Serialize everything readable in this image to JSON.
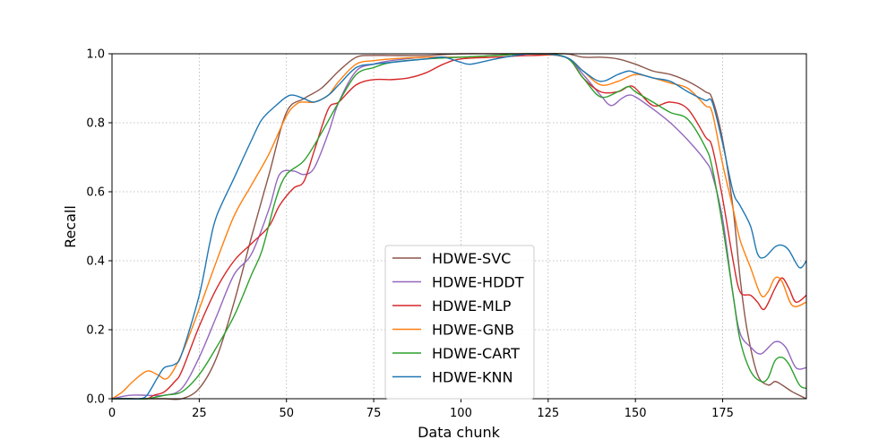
{
  "chart_data": {
    "type": "line",
    "title": "",
    "xlabel": "Data chunk",
    "ylabel": "Recall",
    "xlim": [
      0,
      199
    ],
    "ylim": [
      0,
      1
    ],
    "x_ticks": [
      "0",
      "25",
      "50",
      "75",
      "100",
      "125",
      "150",
      "175"
    ],
    "y_ticks": [
      "0.0",
      "0.2",
      "0.4",
      "0.6",
      "0.8",
      "1.0"
    ],
    "grid": true,
    "legend_position": "lower-center",
    "series": [
      {
        "name": "HDWE-SVC",
        "color": "#8c564b",
        "points": [
          [
            0,
            0
          ],
          [
            5,
            0
          ],
          [
            10,
            0
          ],
          [
            15,
            0
          ],
          [
            20,
            0
          ],
          [
            25,
            0.03
          ],
          [
            30,
            0.12
          ],
          [
            35,
            0.28
          ],
          [
            40,
            0.47
          ],
          [
            45,
            0.65
          ],
          [
            50,
            0.83
          ],
          [
            55,
            0.87
          ],
          [
            60,
            0.9
          ],
          [
            65,
            0.95
          ],
          [
            70,
            0.99
          ],
          [
            75,
            0.995
          ],
          [
            80,
            0.995
          ],
          [
            90,
            0.995
          ],
          [
            100,
            1.0
          ],
          [
            110,
            1.0
          ],
          [
            120,
            1.0
          ],
          [
            130,
            1.0
          ],
          [
            135,
            0.99
          ],
          [
            140,
            0.99
          ],
          [
            145,
            0.985
          ],
          [
            150,
            0.97
          ],
          [
            155,
            0.95
          ],
          [
            160,
            0.94
          ],
          [
            165,
            0.92
          ],
          [
            170,
            0.89
          ],
          [
            172,
            0.87
          ],
          [
            175,
            0.75
          ],
          [
            178,
            0.55
          ],
          [
            180,
            0.35
          ],
          [
            182,
            0.2
          ],
          [
            185,
            0.07
          ],
          [
            188,
            0.04
          ],
          [
            190,
            0.05
          ],
          [
            192,
            0.04
          ],
          [
            195,
            0.02
          ],
          [
            199,
            0.0
          ]
        ]
      },
      {
        "name": "HDWE-HDDT",
        "color": "#9467bd",
        "points": [
          [
            0,
            0
          ],
          [
            5,
            0.01
          ],
          [
            10,
            0.01
          ],
          [
            15,
            0.01
          ],
          [
            20,
            0.03
          ],
          [
            25,
            0.12
          ],
          [
            30,
            0.24
          ],
          [
            35,
            0.36
          ],
          [
            40,
            0.42
          ],
          [
            45,
            0.55
          ],
          [
            48,
            0.65
          ],
          [
            52,
            0.66
          ],
          [
            55,
            0.65
          ],
          [
            58,
            0.67
          ],
          [
            62,
            0.77
          ],
          [
            65,
            0.86
          ],
          [
            70,
            0.95
          ],
          [
            75,
            0.97
          ],
          [
            80,
            0.98
          ],
          [
            90,
            0.99
          ],
          [
            100,
            0.99
          ],
          [
            110,
            0.995
          ],
          [
            120,
            1.0
          ],
          [
            130,
            0.99
          ],
          [
            135,
            0.94
          ],
          [
            140,
            0.88
          ],
          [
            143,
            0.85
          ],
          [
            146,
            0.87
          ],
          [
            148,
            0.88
          ],
          [
            150,
            0.875
          ],
          [
            155,
            0.84
          ],
          [
            160,
            0.8
          ],
          [
            165,
            0.75
          ],
          [
            170,
            0.69
          ],
          [
            172,
            0.65
          ],
          [
            175,
            0.52
          ],
          [
            178,
            0.3
          ],
          [
            180,
            0.19
          ],
          [
            183,
            0.15
          ],
          [
            186,
            0.13
          ],
          [
            190,
            0.165
          ],
          [
            193,
            0.15
          ],
          [
            196,
            0.09
          ],
          [
            199,
            0.09
          ]
        ]
      },
      {
        "name": "HDWE-MLP",
        "color": "#d62728",
        "points": [
          [
            0,
            0
          ],
          [
            5,
            0
          ],
          [
            10,
            0
          ],
          [
            12,
            0.01
          ],
          [
            15,
            0.02
          ],
          [
            18,
            0.05
          ],
          [
            20,
            0.08
          ],
          [
            25,
            0.21
          ],
          [
            30,
            0.32
          ],
          [
            35,
            0.4
          ],
          [
            40,
            0.45
          ],
          [
            45,
            0.5
          ],
          [
            48,
            0.56
          ],
          [
            52,
            0.61
          ],
          [
            55,
            0.63
          ],
          [
            58,
            0.72
          ],
          [
            62,
            0.84
          ],
          [
            65,
            0.86
          ],
          [
            70,
            0.91
          ],
          [
            75,
            0.925
          ],
          [
            80,
            0.925
          ],
          [
            85,
            0.93
          ],
          [
            90,
            0.945
          ],
          [
            95,
            0.97
          ],
          [
            100,
            0.985
          ],
          [
            110,
            0.99
          ],
          [
            120,
            0.995
          ],
          [
            130,
            0.99
          ],
          [
            135,
            0.93
          ],
          [
            140,
            0.89
          ],
          [
            145,
            0.89
          ],
          [
            148,
            0.905
          ],
          [
            150,
            0.9
          ],
          [
            155,
            0.85
          ],
          [
            160,
            0.86
          ],
          [
            165,
            0.84
          ],
          [
            170,
            0.76
          ],
          [
            172,
            0.73
          ],
          [
            175,
            0.58
          ],
          [
            178,
            0.4
          ],
          [
            180,
            0.31
          ],
          [
            183,
            0.3
          ],
          [
            185,
            0.28
          ],
          [
            187,
            0.26
          ],
          [
            190,
            0.32
          ],
          [
            192,
            0.35
          ],
          [
            194,
            0.32
          ],
          [
            196,
            0.28
          ],
          [
            199,
            0.3
          ]
        ]
      },
      {
        "name": "HDWE-GNB",
        "color": "#ff7f0e",
        "points": [
          [
            0,
            0
          ],
          [
            3,
            0.02
          ],
          [
            6,
            0.05
          ],
          [
            10,
            0.08
          ],
          [
            13,
            0.07
          ],
          [
            16,
            0.06
          ],
          [
            20,
            0.13
          ],
          [
            25,
            0.26
          ],
          [
            30,
            0.4
          ],
          [
            35,
            0.53
          ],
          [
            40,
            0.62
          ],
          [
            45,
            0.71
          ],
          [
            50,
            0.82
          ],
          [
            53,
            0.855
          ],
          [
            55,
            0.86
          ],
          [
            58,
            0.86
          ],
          [
            62,
            0.88
          ],
          [
            65,
            0.92
          ],
          [
            70,
            0.97
          ],
          [
            75,
            0.98
          ],
          [
            80,
            0.985
          ],
          [
            90,
            0.99
          ],
          [
            100,
            0.99
          ],
          [
            110,
            0.995
          ],
          [
            120,
            1.0
          ],
          [
            130,
            0.99
          ],
          [
            135,
            0.95
          ],
          [
            140,
            0.91
          ],
          [
            145,
            0.92
          ],
          [
            150,
            0.94
          ],
          [
            155,
            0.93
          ],
          [
            160,
            0.915
          ],
          [
            165,
            0.9
          ],
          [
            170,
            0.85
          ],
          [
            172,
            0.83
          ],
          [
            175,
            0.68
          ],
          [
            178,
            0.55
          ],
          [
            180,
            0.46
          ],
          [
            183,
            0.38
          ],
          [
            186,
            0.3
          ],
          [
            188,
            0.31
          ],
          [
            190,
            0.35
          ],
          [
            192,
            0.34
          ],
          [
            195,
            0.27
          ],
          [
            199,
            0.28
          ]
        ]
      },
      {
        "name": "HDWE-CART",
        "color": "#2ca02c",
        "points": [
          [
            0,
            0
          ],
          [
            5,
            0
          ],
          [
            10,
            0
          ],
          [
            15,
            0.01
          ],
          [
            20,
            0.02
          ],
          [
            25,
            0.07
          ],
          [
            30,
            0.15
          ],
          [
            35,
            0.24
          ],
          [
            40,
            0.36
          ],
          [
            43,
            0.43
          ],
          [
            47,
            0.58
          ],
          [
            50,
            0.65
          ],
          [
            55,
            0.69
          ],
          [
            60,
            0.77
          ],
          [
            65,
            0.86
          ],
          [
            70,
            0.94
          ],
          [
            75,
            0.96
          ],
          [
            80,
            0.975
          ],
          [
            90,
            0.985
          ],
          [
            100,
            0.99
          ],
          [
            110,
            0.995
          ],
          [
            120,
            1.0
          ],
          [
            130,
            0.99
          ],
          [
            135,
            0.93
          ],
          [
            140,
            0.875
          ],
          [
            145,
            0.89
          ],
          [
            148,
            0.905
          ],
          [
            150,
            0.89
          ],
          [
            155,
            0.86
          ],
          [
            160,
            0.83
          ],
          [
            165,
            0.81
          ],
          [
            170,
            0.73
          ],
          [
            172,
            0.67
          ],
          [
            175,
            0.5
          ],
          [
            178,
            0.3
          ],
          [
            180,
            0.17
          ],
          [
            183,
            0.08
          ],
          [
            186,
            0.05
          ],
          [
            188,
            0.06
          ],
          [
            190,
            0.11
          ],
          [
            192,
            0.12
          ],
          [
            194,
            0.1
          ],
          [
            197,
            0.04
          ],
          [
            199,
            0.03
          ]
        ]
      },
      {
        "name": "HDWE-KNN",
        "color": "#1f77b4",
        "points": [
          [
            0,
            0
          ],
          [
            5,
            0
          ],
          [
            8,
            0
          ],
          [
            10,
            0.01
          ],
          [
            13,
            0.06
          ],
          [
            15,
            0.09
          ],
          [
            18,
            0.1
          ],
          [
            20,
            0.13
          ],
          [
            25,
            0.3
          ],
          [
            28,
            0.45
          ],
          [
            30,
            0.53
          ],
          [
            35,
            0.64
          ],
          [
            40,
            0.75
          ],
          [
            43,
            0.81
          ],
          [
            47,
            0.85
          ],
          [
            50,
            0.875
          ],
          [
            52,
            0.88
          ],
          [
            55,
            0.87
          ],
          [
            58,
            0.86
          ],
          [
            62,
            0.88
          ],
          [
            65,
            0.91
          ],
          [
            70,
            0.96
          ],
          [
            75,
            0.97
          ],
          [
            80,
            0.975
          ],
          [
            90,
            0.985
          ],
          [
            95,
            0.99
          ],
          [
            100,
            0.975
          ],
          [
            103,
            0.97
          ],
          [
            110,
            0.985
          ],
          [
            120,
            1.0
          ],
          [
            130,
            0.99
          ],
          [
            135,
            0.95
          ],
          [
            140,
            0.92
          ],
          [
            145,
            0.94
          ],
          [
            148,
            0.95
          ],
          [
            150,
            0.945
          ],
          [
            155,
            0.93
          ],
          [
            160,
            0.92
          ],
          [
            165,
            0.89
          ],
          [
            170,
            0.865
          ],
          [
            172,
            0.86
          ],
          [
            175,
            0.74
          ],
          [
            178,
            0.6
          ],
          [
            180,
            0.56
          ],
          [
            183,
            0.5
          ],
          [
            185,
            0.42
          ],
          [
            187,
            0.41
          ],
          [
            190,
            0.44
          ],
          [
            192,
            0.445
          ],
          [
            194,
            0.43
          ],
          [
            197,
            0.38
          ],
          [
            199,
            0.4
          ]
        ]
      }
    ]
  }
}
